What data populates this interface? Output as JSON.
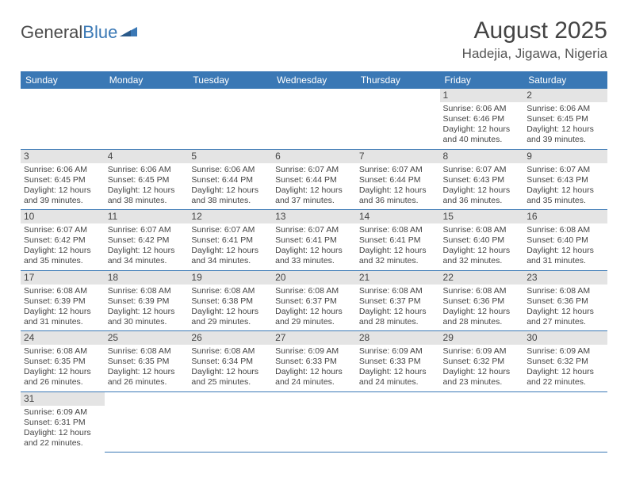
{
  "logo": {
    "text1": "General",
    "text2": "Blue"
  },
  "title": "August 2025",
  "location": "Hadejia, Jigawa, Nigeria",
  "colors": {
    "header_bg": "#3a78b5",
    "header_text": "#ffffff",
    "daynum_bg": "#e4e4e4",
    "body_text": "#444444",
    "rule": "#3a78b5"
  },
  "day_headers": [
    "Sunday",
    "Monday",
    "Tuesday",
    "Wednesday",
    "Thursday",
    "Friday",
    "Saturday"
  ],
  "weeks": [
    [
      null,
      null,
      null,
      null,
      null,
      {
        "n": "1",
        "sr": "Sunrise: 6:06 AM",
        "ss": "Sunset: 6:46 PM",
        "d1": "Daylight: 12 hours",
        "d2": "and 40 minutes."
      },
      {
        "n": "2",
        "sr": "Sunrise: 6:06 AM",
        "ss": "Sunset: 6:45 PM",
        "d1": "Daylight: 12 hours",
        "d2": "and 39 minutes."
      }
    ],
    [
      {
        "n": "3",
        "sr": "Sunrise: 6:06 AM",
        "ss": "Sunset: 6:45 PM",
        "d1": "Daylight: 12 hours",
        "d2": "and 39 minutes."
      },
      {
        "n": "4",
        "sr": "Sunrise: 6:06 AM",
        "ss": "Sunset: 6:45 PM",
        "d1": "Daylight: 12 hours",
        "d2": "and 38 minutes."
      },
      {
        "n": "5",
        "sr": "Sunrise: 6:06 AM",
        "ss": "Sunset: 6:44 PM",
        "d1": "Daylight: 12 hours",
        "d2": "and 38 minutes."
      },
      {
        "n": "6",
        "sr": "Sunrise: 6:07 AM",
        "ss": "Sunset: 6:44 PM",
        "d1": "Daylight: 12 hours",
        "d2": "and 37 minutes."
      },
      {
        "n": "7",
        "sr": "Sunrise: 6:07 AM",
        "ss": "Sunset: 6:44 PM",
        "d1": "Daylight: 12 hours",
        "d2": "and 36 minutes."
      },
      {
        "n": "8",
        "sr": "Sunrise: 6:07 AM",
        "ss": "Sunset: 6:43 PM",
        "d1": "Daylight: 12 hours",
        "d2": "and 36 minutes."
      },
      {
        "n": "9",
        "sr": "Sunrise: 6:07 AM",
        "ss": "Sunset: 6:43 PM",
        "d1": "Daylight: 12 hours",
        "d2": "and 35 minutes."
      }
    ],
    [
      {
        "n": "10",
        "sr": "Sunrise: 6:07 AM",
        "ss": "Sunset: 6:42 PM",
        "d1": "Daylight: 12 hours",
        "d2": "and 35 minutes."
      },
      {
        "n": "11",
        "sr": "Sunrise: 6:07 AM",
        "ss": "Sunset: 6:42 PM",
        "d1": "Daylight: 12 hours",
        "d2": "and 34 minutes."
      },
      {
        "n": "12",
        "sr": "Sunrise: 6:07 AM",
        "ss": "Sunset: 6:41 PM",
        "d1": "Daylight: 12 hours",
        "d2": "and 34 minutes."
      },
      {
        "n": "13",
        "sr": "Sunrise: 6:07 AM",
        "ss": "Sunset: 6:41 PM",
        "d1": "Daylight: 12 hours",
        "d2": "and 33 minutes."
      },
      {
        "n": "14",
        "sr": "Sunrise: 6:08 AM",
        "ss": "Sunset: 6:41 PM",
        "d1": "Daylight: 12 hours",
        "d2": "and 32 minutes."
      },
      {
        "n": "15",
        "sr": "Sunrise: 6:08 AM",
        "ss": "Sunset: 6:40 PM",
        "d1": "Daylight: 12 hours",
        "d2": "and 32 minutes."
      },
      {
        "n": "16",
        "sr": "Sunrise: 6:08 AM",
        "ss": "Sunset: 6:40 PM",
        "d1": "Daylight: 12 hours",
        "d2": "and 31 minutes."
      }
    ],
    [
      {
        "n": "17",
        "sr": "Sunrise: 6:08 AM",
        "ss": "Sunset: 6:39 PM",
        "d1": "Daylight: 12 hours",
        "d2": "and 31 minutes."
      },
      {
        "n": "18",
        "sr": "Sunrise: 6:08 AM",
        "ss": "Sunset: 6:39 PM",
        "d1": "Daylight: 12 hours",
        "d2": "and 30 minutes."
      },
      {
        "n": "19",
        "sr": "Sunrise: 6:08 AM",
        "ss": "Sunset: 6:38 PM",
        "d1": "Daylight: 12 hours",
        "d2": "and 29 minutes."
      },
      {
        "n": "20",
        "sr": "Sunrise: 6:08 AM",
        "ss": "Sunset: 6:37 PM",
        "d1": "Daylight: 12 hours",
        "d2": "and 29 minutes."
      },
      {
        "n": "21",
        "sr": "Sunrise: 6:08 AM",
        "ss": "Sunset: 6:37 PM",
        "d1": "Daylight: 12 hours",
        "d2": "and 28 minutes."
      },
      {
        "n": "22",
        "sr": "Sunrise: 6:08 AM",
        "ss": "Sunset: 6:36 PM",
        "d1": "Daylight: 12 hours",
        "d2": "and 28 minutes."
      },
      {
        "n": "23",
        "sr": "Sunrise: 6:08 AM",
        "ss": "Sunset: 6:36 PM",
        "d1": "Daylight: 12 hours",
        "d2": "and 27 minutes."
      }
    ],
    [
      {
        "n": "24",
        "sr": "Sunrise: 6:08 AM",
        "ss": "Sunset: 6:35 PM",
        "d1": "Daylight: 12 hours",
        "d2": "and 26 minutes."
      },
      {
        "n": "25",
        "sr": "Sunrise: 6:08 AM",
        "ss": "Sunset: 6:35 PM",
        "d1": "Daylight: 12 hours",
        "d2": "and 26 minutes."
      },
      {
        "n": "26",
        "sr": "Sunrise: 6:08 AM",
        "ss": "Sunset: 6:34 PM",
        "d1": "Daylight: 12 hours",
        "d2": "and 25 minutes."
      },
      {
        "n": "27",
        "sr": "Sunrise: 6:09 AM",
        "ss": "Sunset: 6:33 PM",
        "d1": "Daylight: 12 hours",
        "d2": "and 24 minutes."
      },
      {
        "n": "28",
        "sr": "Sunrise: 6:09 AM",
        "ss": "Sunset: 6:33 PM",
        "d1": "Daylight: 12 hours",
        "d2": "and 24 minutes."
      },
      {
        "n": "29",
        "sr": "Sunrise: 6:09 AM",
        "ss": "Sunset: 6:32 PM",
        "d1": "Daylight: 12 hours",
        "d2": "and 23 minutes."
      },
      {
        "n": "30",
        "sr": "Sunrise: 6:09 AM",
        "ss": "Sunset: 6:32 PM",
        "d1": "Daylight: 12 hours",
        "d2": "and 22 minutes."
      }
    ],
    [
      {
        "n": "31",
        "sr": "Sunrise: 6:09 AM",
        "ss": "Sunset: 6:31 PM",
        "d1": "Daylight: 12 hours",
        "d2": "and 22 minutes."
      },
      null,
      null,
      null,
      null,
      null,
      null
    ]
  ]
}
